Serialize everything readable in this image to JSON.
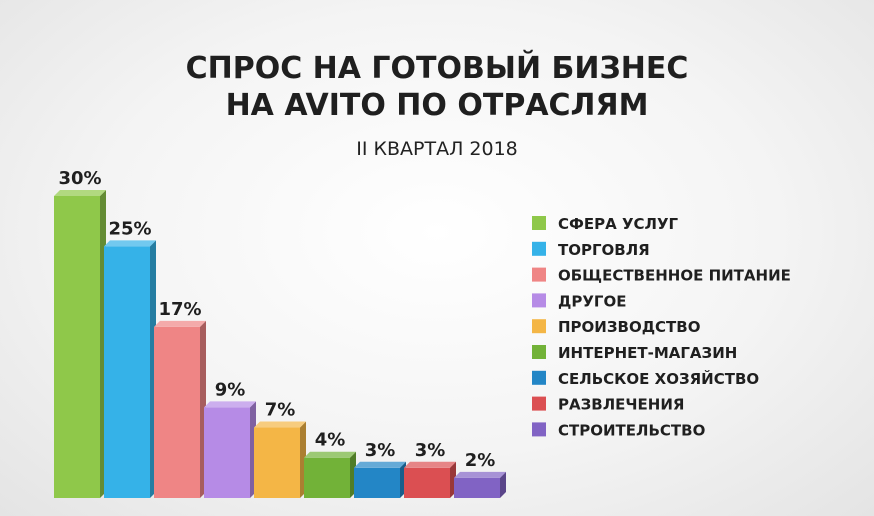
{
  "chart_data": {
    "type": "bar",
    "title_line1": "СПРОС НА ГОТОВЫЙ БИЗНЕС",
    "title_line2": "НА AVITO ПО ОТРАСЛЯМ",
    "subtitle": "II КВАРТАЛ 2018",
    "unit": "%",
    "ylim": [
      0,
      30
    ],
    "grid": false,
    "legend_position": "right",
    "series": [
      {
        "name": "СФЕРА УСЛУГ",
        "value": 30,
        "label": "30%",
        "color": "#8fc84a"
      },
      {
        "name": "ТОРГОВЛЯ",
        "value": 25,
        "label": "25%",
        "color": "#35b2e8"
      },
      {
        "name": "ОБЩЕСТВЕННОЕ ПИТАНИЕ",
        "value": 17,
        "label": "17%",
        "color": "#ef8585"
      },
      {
        "name": "ДРУГОЕ",
        "value": 9,
        "label": "9%",
        "color": "#b68be6"
      },
      {
        "name": "ПРОИЗВОДСТВО",
        "value": 7,
        "label": "7%",
        "color": "#f4b646"
      },
      {
        "name": "ИНТЕРНЕТ-МАГАЗИН",
        "value": 4,
        "label": "4%",
        "color": "#72b238"
      },
      {
        "name": "СЕЛЬСКОЕ ХОЗЯЙСТВО",
        "value": 3,
        "label": "3%",
        "color": "#2386c6"
      },
      {
        "name": "РАЗВЛЕЧЕНИЯ",
        "value": 3,
        "label": "3%",
        "color": "#db4f52"
      },
      {
        "name": "СТРОИТЕЛЬСТВО",
        "value": 2,
        "label": "2%",
        "color": "#8163c4"
      }
    ]
  }
}
